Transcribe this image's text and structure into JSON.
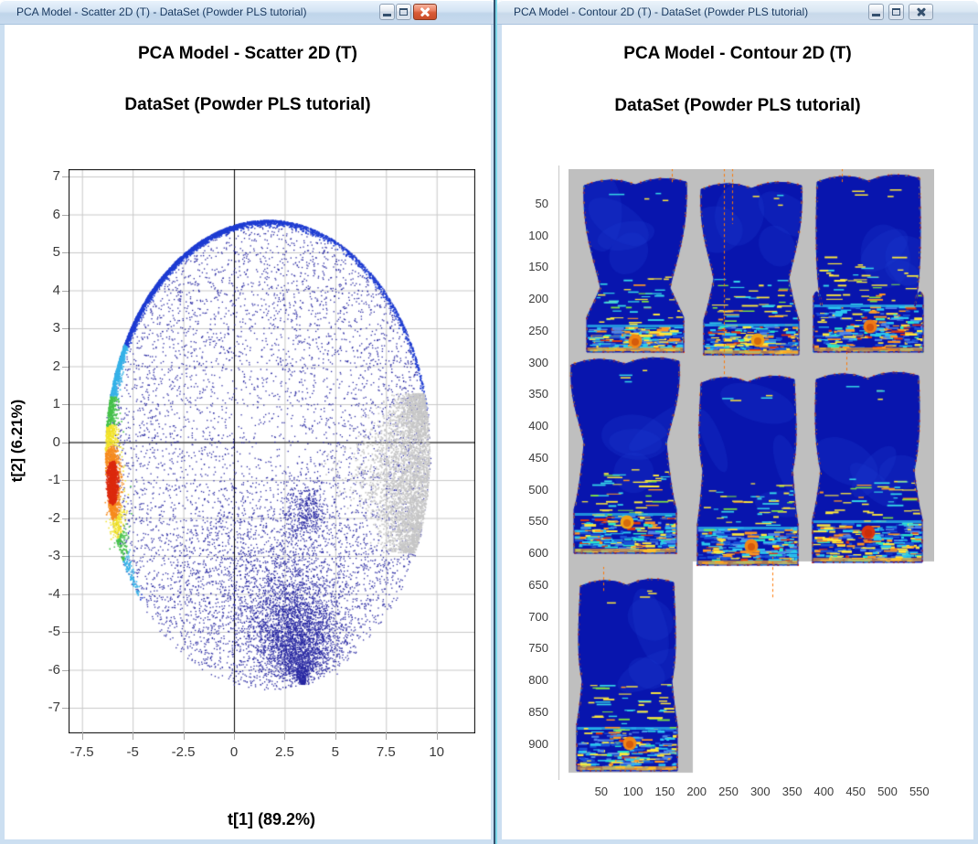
{
  "windows": {
    "left": {
      "title": "PCA Model - Scatter 2D (T) - DataSet (Powder PLS tutorial)",
      "controls": {
        "minimize": "minimize",
        "maximize": "maximize",
        "close": "close"
      },
      "active": true
    },
    "right": {
      "title": "PCA Model - Contour 2D (T) - DataSet (Powder PLS tutorial)",
      "controls": {
        "minimize": "minimize",
        "maximize": "maximize",
        "close": "close"
      },
      "active": false
    }
  },
  "chart_data": [
    {
      "id": "scores_scatter",
      "type": "scatter",
      "title": "PCA Model - Scatter 2D (T)",
      "subtitle": "DataSet (Powder PLS tutorial)",
      "xlabel": "t[1] (89.2%)",
      "ylabel": "t[2] (6.21%)",
      "x_ticks": [
        -7.5,
        -5,
        -2.5,
        0,
        2.5,
        5,
        7.5,
        10
      ],
      "y_ticks": [
        7,
        6,
        5,
        4,
        3,
        2,
        1,
        0,
        -1,
        -2,
        -3,
        -4,
        -5,
        -6,
        -7
      ],
      "xlim": [
        -8.2,
        11.9
      ],
      "ylim": [
        -7.6,
        7.2
      ],
      "grid": true,
      "zero_lines": true,
      "legend": "none",
      "seed": 42,
      "ellipse": {
        "cx": 1.65,
        "cy": -0.32,
        "rx": 8.05,
        "ry": 6.2
      },
      "edge_band": {
        "t_start_deg": 8,
        "t_end_deg": 221,
        "n": 5200,
        "color": "#1e3cd2"
      },
      "hotspot": {
        "x": -6.03,
        "y": -1.05,
        "colors": {
          "red": "#dc2a0e",
          "orange": "#f78c1e",
          "yellow": "#f2e32a",
          "green": "#46c24a",
          "cyan": "#36b2e8"
        }
      },
      "interior": {
        "n": 5600,
        "color": "#2828a2"
      },
      "lower_lobe": {
        "n": 1600,
        "cx": 1.6,
        "cy": -3.6,
        "sx": 2.6,
        "sy": 1.35
      },
      "bottom_cluster": {
        "n": 2200,
        "cx": 3.0,
        "cy": -5.0,
        "sx": 1.15,
        "sy": 0.8
      },
      "funnel": {
        "n": 1000,
        "x1": 3.0,
        "y1": -4.9,
        "x2": 3.38,
        "y2": -6.42
      },
      "mid_cluster": {
        "n": 380,
        "cx": 3.55,
        "cy": -1.85,
        "sx": 0.5,
        "sy": 0.42
      },
      "gray_region": {
        "n": 3600,
        "y_min": -2.9,
        "y_max": 1.3,
        "color": "#c7c7c7"
      }
    },
    {
      "id": "contour_grid",
      "type": "heatmap",
      "title": "PCA Model - Contour 2D (T)",
      "subtitle": "DataSet (Powder PLS tutorial)",
      "x_ticks": [
        50,
        100,
        150,
        200,
        250,
        300,
        350,
        400,
        450,
        500,
        550
      ],
      "y_ticks": [
        50,
        100,
        150,
        200,
        250,
        300,
        350,
        400,
        450,
        500,
        550,
        600,
        650,
        700,
        750,
        800,
        850,
        900
      ],
      "background": "#bfbfbf",
      "n_images": 7,
      "grid_layout": "3 + 3 + 1",
      "bag_color": "#0815ae",
      "seed": 7,
      "gray_blocks": [
        [
          0,
          0,
          400,
          429
        ],
        [
          0,
          429,
          136,
          231
        ]
      ],
      "bags": [
        {
          "cx": 73,
          "top": 10,
          "topW": 112,
          "waistY": 130,
          "waistW": 76,
          "baseTop": 162,
          "baseW": 106,
          "bottom": 200,
          "stripH": 30,
          "dot": [
            73,
            188
          ],
          "dotColor": "#ef8616"
        },
        {
          "cx": 200,
          "top": 14,
          "topW": 110,
          "waistY": 120,
          "waistW": 82,
          "baseTop": 165,
          "baseW": 104,
          "bottom": 203,
          "stripH": 34,
          "dot": [
            207,
            187
          ],
          "dotColor": "#efa216"
        },
        {
          "cx": 328,
          "top": 6,
          "topW": 112,
          "waistY": 150,
          "waistW": 102,
          "baseTop": 140,
          "baseW": 120,
          "bottom": 200,
          "stripH": 52,
          "dot": [
            330,
            172
          ],
          "dotColor": "#ef7a16"
        },
        {
          "cx": 62,
          "top": 206,
          "topW": 118,
          "waistY": 300,
          "waistW": 90,
          "baseTop": 372,
          "baseW": 112,
          "bottom": 420,
          "stripH": 44,
          "dot": [
            64,
            386
          ],
          "dotColor": "#efa216"
        },
        {
          "cx": 196,
          "top": 226,
          "topW": 102,
          "waistY": 330,
          "waistW": 98,
          "baseTop": 388,
          "baseW": 110,
          "bottom": 433,
          "stripH": 42,
          "dot": [
            200,
            412
          ],
          "dotColor": "#ef8616"
        },
        {
          "cx": 327,
          "top": 222,
          "topW": 112,
          "waistY": 330,
          "waistW": 102,
          "baseTop": 383,
          "baseW": 120,
          "bottom": 430,
          "stripH": 46,
          "dot": [
            328,
            397
          ],
          "dotColor": "#dc3410"
        },
        {
          "cx": 64,
          "top": 448,
          "topW": 102,
          "waistY": 560,
          "waistW": 98,
          "baseTop": 608,
          "baseW": 110,
          "bottom": 658,
          "stripH": 48,
          "dot": [
            67,
            628
          ],
          "dotColor": "#ef8616"
        }
      ],
      "artifact_lines": [
        [
          113,
          0,
          16
        ],
        [
          170,
          0,
          226
        ],
        [
          179,
          0,
          60
        ],
        [
          299,
          0,
          14
        ],
        [
          304,
          200,
          222
        ],
        [
          38,
          435,
          462
        ],
        [
          223,
          424,
          470
        ]
      ],
      "strip_palette": [
        "#2bc8f0",
        "#ffe93b",
        "#ff9722",
        "#1a52d8",
        "#29e8c8",
        "#dd3310",
        "#4f86e8"
      ]
    }
  ]
}
